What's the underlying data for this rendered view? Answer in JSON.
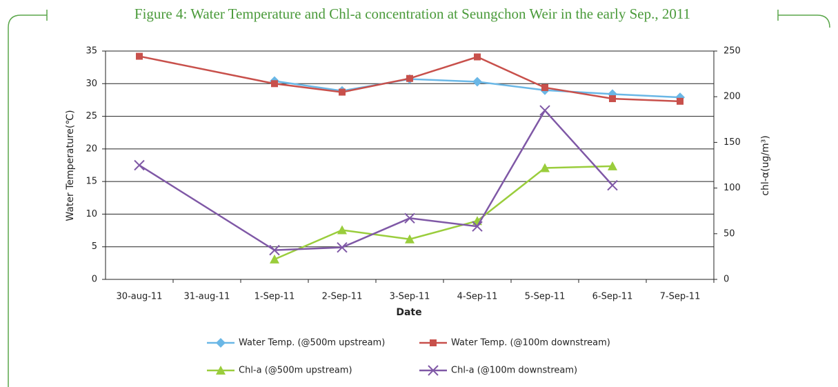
{
  "chart_data": {
    "type": "line",
    "title": "Figure 4: Water Temperature and Chl-a concentration at Seungchon Weir in the early Sep., 2011",
    "x_label": "Date",
    "y_label": "Water Temperature(℃)",
    "y2_label": "chl-α(ug/m³)",
    "categories": [
      "30-aug-11",
      "31-aug-11",
      "1-Sep-11",
      "2-Sep-11",
      "3-Sep-11",
      "4-Sep-11",
      "5-Sep-11",
      "6-Sep-11",
      "7-Sep-11"
    ],
    "ylim": [
      0,
      35
    ],
    "yticks": [
      0,
      5,
      10,
      15,
      20,
      25,
      30,
      35
    ],
    "y2lim": [
      0,
      250
    ],
    "y2ticks": [
      0,
      50,
      100,
      150,
      200,
      250
    ],
    "grid": true,
    "connect_gaps": true,
    "legend": "bottom",
    "series": [
      {
        "name": "Water Temp. (@500m upstream)",
        "color": "#6ab7e6",
        "marker": "diamond",
        "values": [
          null,
          null,
          30.4,
          28.9,
          30.7,
          30.3,
          29.0,
          28.4,
          27.9
        ]
      },
      {
        "name": "Water Temp. (@100m downstream)",
        "color": "#c8504b",
        "marker": "square",
        "values": [
          34.2,
          null,
          30.0,
          28.7,
          30.8,
          34.1,
          29.4,
          27.7,
          27.3
        ]
      },
      {
        "name": "Chl-a (@500m upstream)",
        "color": "#9acd3c",
        "marker": "triangle",
        "axis": "y2",
        "values": [
          null,
          null,
          22,
          54,
          44,
          64,
          122,
          124,
          null
        ]
      },
      {
        "name": "Chl-a (@100m downstream)",
        "color": "#7f58a6",
        "marker": "x",
        "axis": "y2",
        "values": [
          125,
          null,
          32,
          35,
          67,
          58,
          185,
          103,
          null
        ]
      }
    ]
  }
}
